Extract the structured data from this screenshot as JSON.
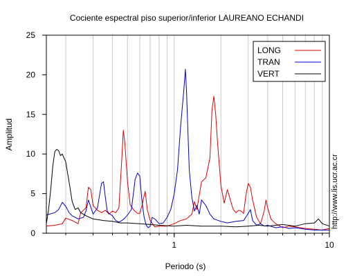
{
  "chart_data": {
    "type": "line",
    "title": "Cociente espectral piso superior/inferior LAUREANO ECHANDI",
    "xlabel": "Periodo (s)",
    "ylabel": "Amplitud",
    "x_scale": "log",
    "xlim": [
      0.15,
      10
    ],
    "ylim": [
      0,
      25
    ],
    "x_tick_labels": [
      "1",
      "10"
    ],
    "y_ticks": [
      0,
      5,
      10,
      15,
      20,
      25
    ],
    "y_tick_labels": [
      "0",
      "5",
      "10",
      "15",
      "20",
      "25"
    ],
    "grid": {
      "x_minor_log": true,
      "y": false
    },
    "legend": {
      "position": "top-right"
    },
    "series": [
      {
        "name": "LONG",
        "color": "#e00000",
        "x": [
          0.15,
          0.17,
          0.19,
          0.2,
          0.22,
          0.24,
          0.25,
          0.27,
          0.28,
          0.29,
          0.3,
          0.32,
          0.34,
          0.36,
          0.38,
          0.4,
          0.42,
          0.44,
          0.46,
          0.47,
          0.48,
          0.5,
          0.52,
          0.55,
          0.58,
          0.6,
          0.62,
          0.63,
          0.65,
          0.67,
          0.7,
          0.75,
          0.8,
          0.9,
          1.0,
          1.1,
          1.2,
          1.3,
          1.35,
          1.4,
          1.5,
          1.6,
          1.7,
          1.75,
          1.8,
          1.85,
          1.9,
          2.0,
          2.1,
          2.2,
          2.3,
          2.4,
          2.5,
          2.6,
          2.7,
          2.8,
          2.9,
          3.0,
          3.1,
          3.2,
          3.4,
          3.6,
          3.8,
          3.9,
          4.0,
          4.2,
          4.5,
          5.0,
          5.5,
          6.0,
          7.0,
          8.0,
          9.0,
          10.0
        ],
        "y": [
          0.9,
          1.0,
          1.2,
          1.9,
          1.6,
          1.2,
          2.6,
          3.2,
          5.8,
          5.5,
          3.5,
          2.9,
          2.6,
          2.9,
          2.4,
          2.8,
          2.6,
          3.2,
          9.5,
          13.0,
          11.5,
          6.5,
          3.6,
          2.9,
          2.5,
          2.5,
          3.5,
          4.2,
          5.3,
          3.0,
          1.6,
          0.8,
          0.9,
          0.9,
          1.2,
          1.6,
          1.8,
          2.4,
          4.0,
          3.0,
          6.5,
          7.0,
          9.5,
          15.5,
          17.3,
          15.0,
          11.5,
          6.0,
          3.8,
          5.5,
          4.2,
          3.0,
          2.6,
          2.9,
          2.8,
          2.5,
          4.8,
          6.3,
          5.8,
          4.2,
          2.0,
          1.2,
          2.8,
          4.2,
          3.2,
          1.8,
          1.2,
          0.7,
          0.9,
          0.8,
          0.6,
          0.5,
          0.4,
          0.6
        ]
      },
      {
        "name": "TRAN",
        "color": "#0000cc",
        "x": [
          0.15,
          0.17,
          0.18,
          0.19,
          0.2,
          0.21,
          0.22,
          0.24,
          0.26,
          0.27,
          0.28,
          0.29,
          0.3,
          0.32,
          0.34,
          0.35,
          0.36,
          0.37,
          0.38,
          0.4,
          0.42,
          0.44,
          0.46,
          0.48,
          0.5,
          0.53,
          0.56,
          0.58,
          0.6,
          0.62,
          0.64,
          0.66,
          0.68,
          0.7,
          0.72,
          0.75,
          0.8,
          0.85,
          0.9,
          0.95,
          1.0,
          1.05,
          1.1,
          1.15,
          1.18,
          1.2,
          1.22,
          1.25,
          1.3,
          1.35,
          1.4,
          1.45,
          1.5,
          1.6,
          1.7,
          1.8,
          2.0,
          2.2,
          2.5,
          2.8,
          3.0,
          3.1,
          3.2,
          3.4,
          3.6,
          3.8,
          4.0,
          4.5,
          5.0,
          5.5,
          6.0,
          7.0,
          8.0,
          9.0,
          10.0
        ],
        "y": [
          2.3,
          2.6,
          3.0,
          3.9,
          3.4,
          2.6,
          2.2,
          1.8,
          2.0,
          2.8,
          4.2,
          3.3,
          2.4,
          3.2,
          6.3,
          6.5,
          4.5,
          2.8,
          2.5,
          2.2,
          1.6,
          1.4,
          1.6,
          1.9,
          2.3,
          3.0,
          6.8,
          7.6,
          7.2,
          4.0,
          2.0,
          1.0,
          0.7,
          0.9,
          2.0,
          1.8,
          1.2,
          1.3,
          2.0,
          3.0,
          5.0,
          8.0,
          13.5,
          17.8,
          20.7,
          18.0,
          14.0,
          8.0,
          4.5,
          2.8,
          3.5,
          2.4,
          4.2,
          3.5,
          2.4,
          1.8,
          1.5,
          1.3,
          1.5,
          1.6,
          2.5,
          3.0,
          1.6,
          1.0,
          1.2,
          0.9,
          1.0,
          0.7,
          0.8,
          0.6,
          0.7,
          0.5,
          0.4,
          0.4,
          0.4
        ]
      },
      {
        "name": "VERT",
        "color": "#000000",
        "x": [
          0.15,
          0.155,
          0.16,
          0.165,
          0.17,
          0.175,
          0.18,
          0.185,
          0.19,
          0.2,
          0.21,
          0.22,
          0.23,
          0.24,
          0.25,
          0.27,
          0.3,
          0.35,
          0.4,
          0.45,
          0.5,
          0.6,
          0.7,
          0.8,
          1.0,
          1.2,
          1.5,
          2.0,
          2.5,
          3.0,
          3.5,
          4.0,
          5.0,
          6.0,
          7.0,
          8.0,
          8.5,
          9.0,
          10.0
        ],
        "y": [
          1.2,
          3.0,
          5.5,
          8.5,
          10.3,
          10.6,
          10.4,
          9.8,
          10.0,
          9.0,
          6.5,
          4.0,
          3.0,
          3.2,
          2.6,
          2.2,
          1.8,
          1.6,
          1.5,
          1.3,
          1.3,
          1.2,
          1.1,
          1.0,
          0.9,
          1.0,
          0.9,
          0.9,
          0.8,
          0.9,
          1.0,
          0.9,
          1.1,
          0.9,
          1.2,
          1.3,
          1.8,
          1.2,
          0.9
        ]
      }
    ]
  },
  "side_text": "http://www.lis.ucr.ac.cr"
}
